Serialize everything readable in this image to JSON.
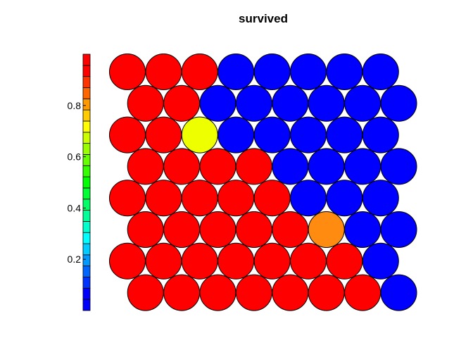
{
  "chart_data": {
    "type": "heatmap",
    "layout": "hexagonal-som-grid",
    "title": "survived",
    "grid": false,
    "legend": "colorbar-left",
    "colorbar": {
      "ticks": [
        0.2,
        0.4,
        0.6,
        0.8
      ],
      "tick_labels": [
        "0.2",
        "0.4",
        "0.6",
        "0.8"
      ],
      "range": [
        0,
        1
      ],
      "colors": [
        "#0000ff",
        "#0000ff",
        "#0033ff",
        "#0066ff",
        "#0099ff",
        "#00ccff",
        "#00ffff",
        "#00ffcc",
        "#00ff99",
        "#00ff66",
        "#00ff33",
        "#00ff00",
        "#33ff00",
        "#66ff00",
        "#99ff00",
        "#ccff00",
        "#ffff00",
        "#ffcc00",
        "#ff9900",
        "#ff6600",
        "#ff3300",
        "#ff0000",
        "#ff0000"
      ]
    },
    "rows": [
      [
        0.95,
        0.95,
        0.95,
        0.05,
        0.05,
        0.05,
        0.05,
        0.05
      ],
      [
        0.95,
        0.95,
        0.05,
        0.05,
        0.05,
        0.05,
        0.05,
        0.05
      ],
      [
        0.95,
        0.95,
        0.72,
        0.05,
        0.05,
        0.05,
        0.05,
        0.05
      ],
      [
        0.95,
        0.95,
        0.95,
        0.95,
        0.05,
        0.05,
        0.05,
        0.05
      ],
      [
        0.95,
        0.95,
        0.95,
        0.95,
        0.95,
        0.05,
        0.05,
        0.05
      ],
      [
        0.95,
        0.95,
        0.95,
        0.95,
        0.95,
        0.85,
        0.05,
        0.05
      ],
      [
        0.95,
        0.95,
        0.95,
        0.95,
        0.95,
        0.95,
        0.95,
        0.05
      ],
      [
        0.95,
        0.95,
        0.95,
        0.95,
        0.95,
        0.95,
        0.95,
        0.05
      ]
    ],
    "cell_colors": [
      [
        "#ff0000",
        "#ff0000",
        "#ff0000",
        "#0000ff",
        "#0000ff",
        "#0000ff",
        "#0000ff",
        "#0000ff"
      ],
      [
        "#ff0000",
        "#ff0000",
        "#0000ff",
        "#0000ff",
        "#0000ff",
        "#0000ff",
        "#0000ff",
        "#0000ff"
      ],
      [
        "#ff0000",
        "#ff0000",
        "#eeff00",
        "#0000ff",
        "#0000ff",
        "#0000ff",
        "#0000ff",
        "#0000ff"
      ],
      [
        "#ff0000",
        "#ff0000",
        "#ff0000",
        "#ff0000",
        "#0000ff",
        "#0000ff",
        "#0000ff",
        "#0000ff"
      ],
      [
        "#ff0000",
        "#ff0000",
        "#ff0000",
        "#ff0000",
        "#ff0000",
        "#0000ff",
        "#0000ff",
        "#0000ff"
      ],
      [
        "#ff0000",
        "#ff0000",
        "#ff0000",
        "#ff0000",
        "#ff0000",
        "#ff8c10",
        "#0000ff",
        "#0000ff"
      ],
      [
        "#ff0000",
        "#ff0000",
        "#ff0000",
        "#ff0000",
        "#ff0000",
        "#ff0000",
        "#ff0000",
        "#0000ff"
      ],
      [
        "#ff0000",
        "#ff0000",
        "#ff0000",
        "#ff0000",
        "#ff0000",
        "#ff0000",
        "#ff0000",
        "#0000ff"
      ]
    ]
  }
}
